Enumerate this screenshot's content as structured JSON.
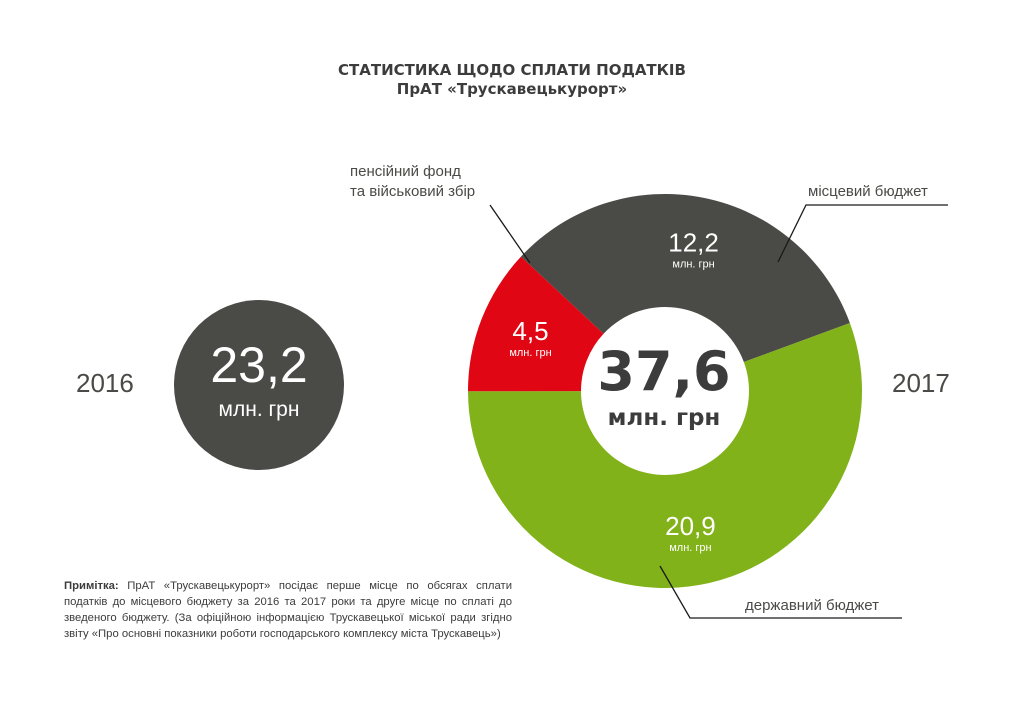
{
  "header": {
    "title": "СТАТИСТИКА ЩОДО СПЛАТИ ПОДАТКІВ",
    "subtitle": "ПрАТ «Трускавецькурорт»"
  },
  "year_2016": {
    "label": "2016",
    "value": "23,2",
    "unit": "млн. грн"
  },
  "year_2017": {
    "label": "2017"
  },
  "chart_data": {
    "type": "pie",
    "donut": true,
    "total": 37.6,
    "total_text": "37,6",
    "total_unit": "млн. грн",
    "unit": "млн. грн",
    "slices": [
      {
        "name": "місцевий бюджет",
        "value": 12.2,
        "value_text": "12,2",
        "color": "#4a4a46"
      },
      {
        "name": "державний бюджет",
        "value": 20.9,
        "value_text": "20,9",
        "color": "#82b219"
      },
      {
        "name": "пенсійний фонд та військовий збір",
        "value": 4.5,
        "value_text": "4,5",
        "color": "#e10613"
      }
    ]
  },
  "callouts": {
    "pension_line1": "пенсійний фонд",
    "pension_line2": "та військовий збір",
    "local": "місцевий бюджет",
    "state": "державний бюджет"
  },
  "note": {
    "label": "Примітка:",
    "text": "ПрАТ «Трускавецькурорт» посідає перше місце по обсягах сплати податків до місцевого бюджету за 2016 та 2017 роки та друге місце по сплаті до зведеного бюджету. (За офіційною інформацією Трускавецької міської ради згідно звіту «Про основні показники роботи господарського комплексу міста Трускавець»)"
  }
}
